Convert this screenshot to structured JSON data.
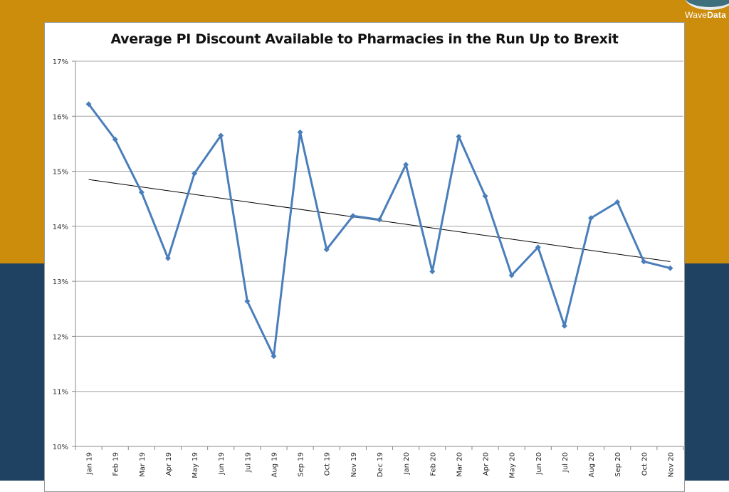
{
  "brand": {
    "logo_text_light": "Wave",
    "logo_text_bold": "Data"
  },
  "colors": {
    "background_top": "#cc8c0c",
    "background_bottom": "#1f4263",
    "series": "#4a7ebb",
    "trendline": "#000000",
    "gridline": "#a6a6a6"
  },
  "chart_data": {
    "type": "line",
    "title": "Average PI Discount Available to Pharmacies in the Run Up to Brexit",
    "xlabel": "",
    "ylabel": "",
    "ylim": [
      10,
      17
    ],
    "yticks": [
      "10%",
      "11%",
      "12%",
      "13%",
      "14%",
      "15%",
      "16%",
      "17%"
    ],
    "grid": true,
    "legend": "none",
    "categories": [
      "Jan 19",
      "Feb 19",
      "Mar 19",
      "Apr 19",
      "May 19",
      "Jun 19",
      "Jul 19",
      "Aug 19",
      "Sep 19",
      "Oct 19",
      "Nov 19",
      "Dec 19",
      "Jan 20",
      "Feb 20",
      "Mar 20",
      "Apr 20",
      "May 20",
      "Jun 20",
      "Jul 20",
      "Aug 20",
      "Sep 20",
      "Oct 20",
      "Nov 20"
    ],
    "series": [
      {
        "name": "Average PI Discount (%)",
        "values": [
          16.22,
          15.58,
          14.62,
          13.42,
          14.96,
          15.65,
          12.64,
          11.64,
          15.71,
          13.58,
          14.19,
          14.12,
          15.12,
          13.18,
          15.63,
          14.55,
          13.11,
          13.62,
          12.19,
          14.15,
          14.44,
          13.36,
          13.24
        ]
      },
      {
        "name": "Linear trend",
        "values": [
          14.85,
          13.36
        ],
        "type": "trendline"
      }
    ]
  }
}
